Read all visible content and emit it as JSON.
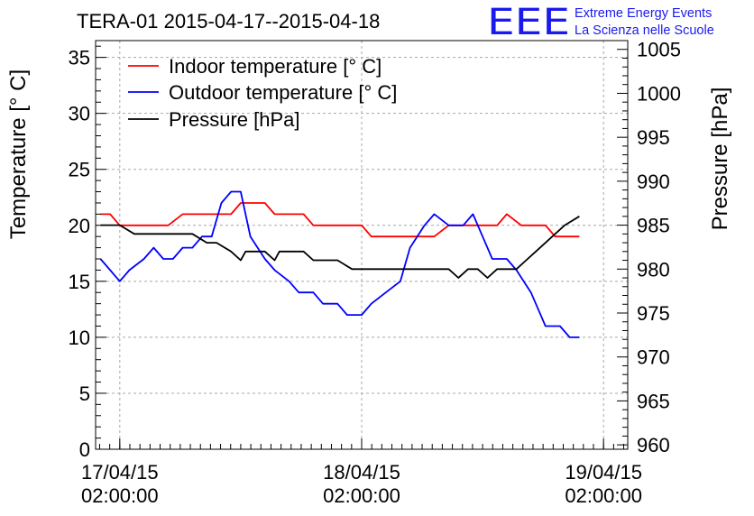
{
  "chart_data": {
    "type": "line",
    "title": "TERA-01 2015-04-17--2015-04-18",
    "ylabel": "Temperature [° C]",
    "y2label": "Pressure [hPa]",
    "xlabel": "",
    "ylim": [
      0,
      36.5
    ],
    "y2lim": [
      959.5,
      1006
    ],
    "yticks": [
      0,
      5,
      10,
      15,
      20,
      25,
      30,
      35
    ],
    "y2ticks": [
      960,
      965,
      970,
      975,
      980,
      985,
      990,
      995,
      1000,
      1005
    ],
    "xlim": [
      -0.1,
      2.1
    ],
    "xticks": [
      {
        "x": 0,
        "date": "17/04/15",
        "time": "02:00:00"
      },
      {
        "x": 1,
        "date": "18/04/15",
        "time": "02:00:00"
      },
      {
        "x": 2,
        "date": "19/04/15",
        "time": "02:00:00"
      }
    ],
    "grid": true,
    "legend_position": "top-left",
    "series": [
      {
        "name": "Indoor temperature [° C]",
        "axis": "left",
        "color": "#ff0000",
        "x": [
          -0.08,
          -0.04,
          0.0,
          0.1,
          0.2,
          0.26,
          0.3,
          0.4,
          0.46,
          0.5,
          0.52,
          0.6,
          0.64,
          0.7,
          0.76,
          0.8,
          0.9,
          0.96,
          1.0,
          1.04,
          1.1,
          1.2,
          1.3,
          1.36,
          1.4,
          1.5,
          1.56,
          1.6,
          1.66,
          1.7,
          1.76,
          1.8,
          1.9
        ],
        "y": [
          21,
          21,
          20,
          20,
          20,
          21,
          21,
          21,
          21,
          22,
          22,
          22,
          21,
          21,
          21,
          20,
          20,
          20,
          20,
          19,
          19,
          19,
          19,
          20,
          20,
          20,
          20,
          21,
          20,
          20,
          20,
          19,
          19
        ]
      },
      {
        "name": "Outdoor temperature [° C]",
        "axis": "left",
        "color": "#0000ff",
        "x": [
          -0.08,
          -0.04,
          0.0,
          0.04,
          0.1,
          0.14,
          0.18,
          0.22,
          0.26,
          0.3,
          0.34,
          0.38,
          0.42,
          0.46,
          0.5,
          0.54,
          0.6,
          0.64,
          0.7,
          0.74,
          0.8,
          0.84,
          0.9,
          0.94,
          1.0,
          1.04,
          1.1,
          1.16,
          1.2,
          1.26,
          1.3,
          1.36,
          1.42,
          1.46,
          1.5,
          1.54,
          1.6,
          1.64,
          1.7,
          1.72,
          1.76,
          1.8,
          1.82,
          1.86,
          1.9
        ],
        "y": [
          17,
          16,
          15,
          16,
          17,
          18,
          17,
          17,
          18,
          18,
          19,
          19,
          22,
          23,
          23,
          19,
          17,
          16,
          15,
          14,
          14,
          13,
          13,
          12,
          12,
          13,
          14,
          15,
          18,
          20,
          21,
          20,
          20,
          21,
          19,
          17,
          17,
          16,
          14,
          13,
          11,
          11,
          11,
          10,
          10
        ]
      },
      {
        "name": "Pressure [hPa]",
        "axis": "right",
        "color": "#000000",
        "x": [
          -0.08,
          -0.04,
          0.0,
          0.06,
          0.2,
          0.3,
          0.36,
          0.4,
          0.46,
          0.5,
          0.52,
          0.56,
          0.6,
          0.64,
          0.66,
          0.7,
          0.76,
          0.8,
          0.86,
          0.9,
          0.96,
          1.0,
          1.1,
          1.2,
          1.26,
          1.3,
          1.36,
          1.4,
          1.44,
          1.48,
          1.52,
          1.56,
          1.6,
          1.64,
          1.68,
          1.72,
          1.76,
          1.8,
          1.84,
          1.9
        ],
        "y": [
          985,
          985,
          985,
          984,
          984,
          984,
          983,
          983,
          982,
          981,
          982,
          982,
          982,
          981,
          982,
          982,
          982,
          981,
          981,
          981,
          980,
          980,
          980,
          980,
          980,
          980,
          980,
          979,
          980,
          980,
          979,
          980,
          980,
          980,
          981,
          982,
          983,
          984,
          985,
          986
        ]
      }
    ]
  },
  "logo": {
    "mark": "EEE",
    "line1": "Extreme Energy Events",
    "line2": "La Scienza nelle Scuole"
  }
}
